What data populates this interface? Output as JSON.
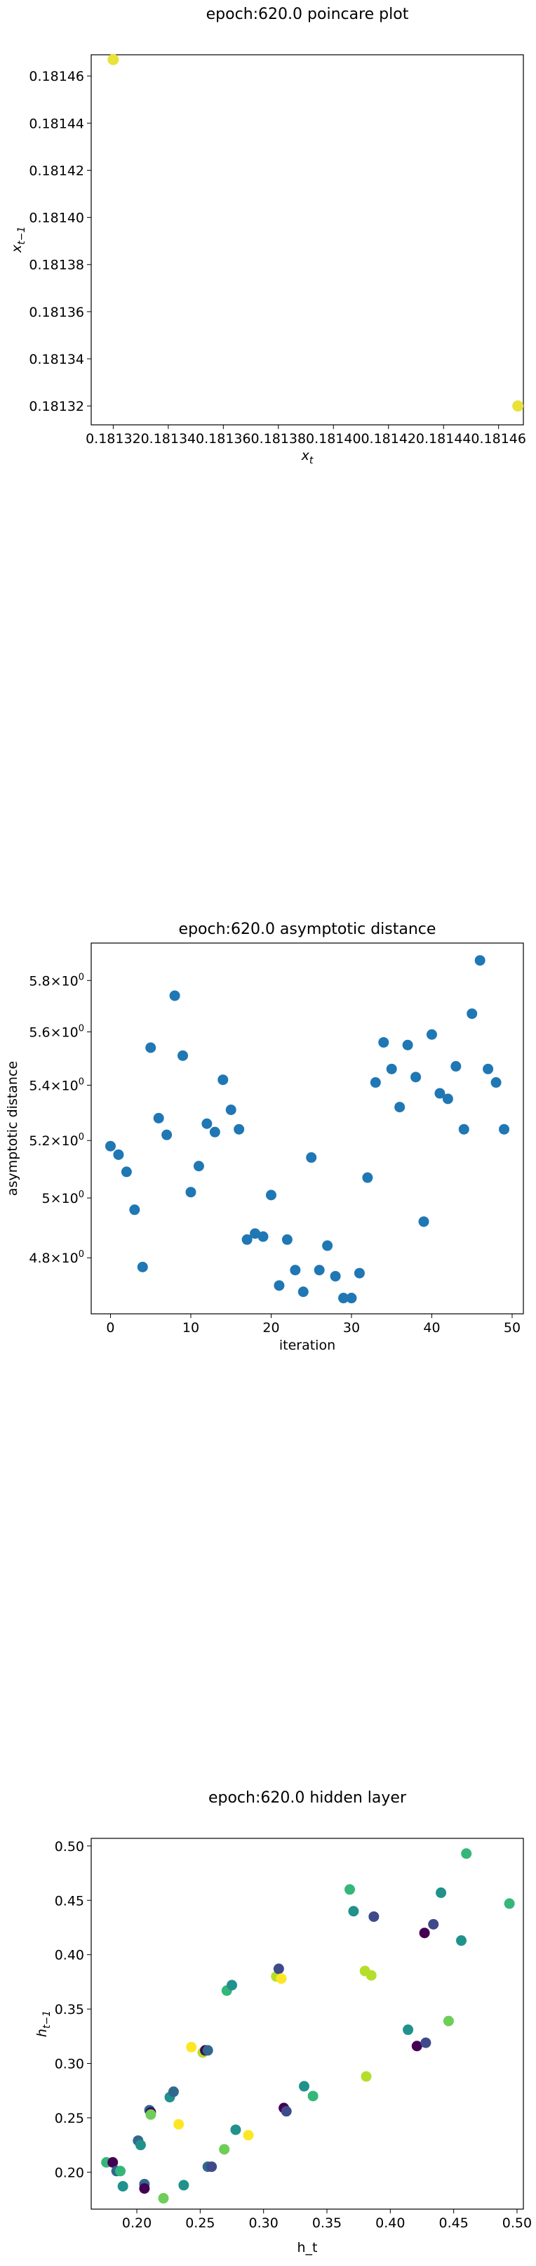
{
  "charts": {
    "poincare": {
      "title": "epoch:620.0 poincare plot",
      "xlabel": "x",
      "xlabel_sub": "t",
      "ylabel": "x",
      "ylabel_sub": "t−1",
      "x_ticks": [
        "0.18132",
        "0.18134",
        "0.18136",
        "0.18138",
        "0.18140",
        "0.18142",
        "0.18144",
        "0.18146"
      ],
      "y_ticks": [
        "0.18132",
        "0.18134",
        "0.18136",
        "0.18138",
        "0.18140",
        "0.18142",
        "0.18144",
        "0.18146"
      ]
    },
    "asymptotic": {
      "title": "epoch:620.0 asymptotic distance",
      "xlabel": "iteration",
      "ylabel": "asymptotic distance",
      "x_ticks": [
        "0",
        "10",
        "20",
        "30",
        "40",
        "50"
      ],
      "y_ticks": [
        "4.8",
        "5",
        "5.2",
        "5.4",
        "5.6",
        "5.8"
      ]
    },
    "hidden": {
      "title": "epoch:620.0 hidden layer",
      "xlabel": "h_t",
      "ylabel": "h",
      "ylabel_sub": "t−1",
      "x_ticks": [
        "0.20",
        "0.25",
        "0.30",
        "0.35",
        "0.40",
        "0.45",
        "0.50"
      ],
      "y_ticks": [
        "0.20",
        "0.25",
        "0.30",
        "0.35",
        "0.40",
        "0.45",
        "0.50"
      ]
    }
  },
  "chart_data": [
    {
      "type": "scatter",
      "title": "epoch:620.0 poincare plot",
      "xlabel": "x_t",
      "ylabel": "x_{t-1}",
      "xlim": [
        0.181312,
        0.181469
      ],
      "ylim": [
        0.181312,
        0.181469
      ],
      "grid": false,
      "marker_color": "#e8e23a",
      "points": [
        {
          "x": 0.18132,
          "y": 0.181467
        },
        {
          "x": 0.181467,
          "y": 0.18132
        }
      ]
    },
    {
      "type": "scatter",
      "title": "epoch:620.0 asymptotic distance",
      "xlabel": "iteration",
      "ylabel": "asymptotic distance",
      "y_scale": "log",
      "xlim": [
        -2.4,
        51.4
      ],
      "ylim": [
        4.62,
        5.95
      ],
      "grid": false,
      "marker_color": "#1f77b4",
      "x": [
        0,
        1,
        2,
        3,
        4,
        5,
        6,
        7,
        8,
        9,
        10,
        11,
        12,
        13,
        14,
        15,
        16,
        17,
        18,
        19,
        20,
        21,
        22,
        23,
        24,
        25,
        26,
        27,
        28,
        29,
        30,
        31,
        32,
        33,
        34,
        35,
        36,
        37,
        38,
        39,
        40,
        41,
        42,
        43,
        44,
        45,
        46,
        47,
        48,
        49
      ],
      "y": [
        5.18,
        5.15,
        5.09,
        4.96,
        4.77,
        5.54,
        5.28,
        5.22,
        5.74,
        5.51,
        5.02,
        5.11,
        5.26,
        5.23,
        5.42,
        5.31,
        5.24,
        4.86,
        4.88,
        4.87,
        5.01,
        4.71,
        4.86,
        4.76,
        4.69,
        5.14,
        4.76,
        4.84,
        4.74,
        4.67,
        4.67,
        4.75,
        5.07,
        5.41,
        5.56,
        5.46,
        5.32,
        5.55,
        5.43,
        4.92,
        5.59,
        5.37,
        5.35,
        5.47,
        5.24,
        5.67,
        5.88,
        5.46,
        5.41,
        5.24
      ]
    },
    {
      "type": "scatter",
      "title": "epoch:620.0 hidden layer",
      "xlabel": "h_t",
      "ylabel": "h_{t-1}",
      "xlim": [
        0.164,
        0.505
      ],
      "ylim": [
        0.166,
        0.507
      ],
      "grid": false,
      "colormap": "viridis",
      "points": [
        {
          "x": 0.176,
          "y": 0.209,
          "c": "#35b779"
        },
        {
          "x": 0.181,
          "y": 0.209,
          "c": "#440154"
        },
        {
          "x": 0.184,
          "y": 0.201,
          "c": "#31688e"
        },
        {
          "x": 0.187,
          "y": 0.201,
          "c": "#35b779"
        },
        {
          "x": 0.189,
          "y": 0.187,
          "c": "#21918c"
        },
        {
          "x": 0.201,
          "y": 0.229,
          "c": "#31688e"
        },
        {
          "x": 0.203,
          "y": 0.225,
          "c": "#21918c"
        },
        {
          "x": 0.206,
          "y": 0.189,
          "c": "#31688e"
        },
        {
          "x": 0.206,
          "y": 0.185,
          "c": "#440154"
        },
        {
          "x": 0.21,
          "y": 0.257,
          "c": "#31688e"
        },
        {
          "x": 0.211,
          "y": 0.255,
          "c": "#440154"
        },
        {
          "x": 0.211,
          "y": 0.253,
          "c": "#6ece58"
        },
        {
          "x": 0.221,
          "y": 0.176,
          "c": "#6ece58"
        },
        {
          "x": 0.226,
          "y": 0.269,
          "c": "#21918c"
        },
        {
          "x": 0.229,
          "y": 0.274,
          "c": "#31688e"
        },
        {
          "x": 0.233,
          "y": 0.244,
          "c": "#fde725"
        },
        {
          "x": 0.237,
          "y": 0.188,
          "c": "#21918c"
        },
        {
          "x": 0.243,
          "y": 0.315,
          "c": "#fde725"
        },
        {
          "x": 0.252,
          "y": 0.31,
          "c": "#b5de2b"
        },
        {
          "x": 0.254,
          "y": 0.312,
          "c": "#440154"
        },
        {
          "x": 0.256,
          "y": 0.205,
          "c": "#31688e"
        },
        {
          "x": 0.256,
          "y": 0.312,
          "c": "#31688e"
        },
        {
          "x": 0.259,
          "y": 0.205,
          "c": "#3e4a89"
        },
        {
          "x": 0.269,
          "y": 0.221,
          "c": "#6ece58"
        },
        {
          "x": 0.271,
          "y": 0.367,
          "c": "#35b779"
        },
        {
          "x": 0.275,
          "y": 0.372,
          "c": "#21918c"
        },
        {
          "x": 0.278,
          "y": 0.239,
          "c": "#21918c"
        },
        {
          "x": 0.288,
          "y": 0.234,
          "c": "#fde725"
        },
        {
          "x": 0.31,
          "y": 0.38,
          "c": "#b5de2b"
        },
        {
          "x": 0.312,
          "y": 0.387,
          "c": "#3e4a89"
        },
        {
          "x": 0.314,
          "y": 0.378,
          "c": "#fde725"
        },
        {
          "x": 0.316,
          "y": 0.259,
          "c": "#440154"
        },
        {
          "x": 0.318,
          "y": 0.256,
          "c": "#3e4a89"
        },
        {
          "x": 0.332,
          "y": 0.279,
          "c": "#21918c"
        },
        {
          "x": 0.339,
          "y": 0.27,
          "c": "#35b779"
        },
        {
          "x": 0.368,
          "y": 0.46,
          "c": "#35b779"
        },
        {
          "x": 0.371,
          "y": 0.44,
          "c": "#21918c"
        },
        {
          "x": 0.38,
          "y": 0.385,
          "c": "#b5de2b"
        },
        {
          "x": 0.381,
          "y": 0.288,
          "c": "#b5de2b"
        },
        {
          "x": 0.385,
          "y": 0.381,
          "c": "#b5de2b"
        },
        {
          "x": 0.387,
          "y": 0.435,
          "c": "#3e4a89"
        },
        {
          "x": 0.414,
          "y": 0.331,
          "c": "#21918c"
        },
        {
          "x": 0.421,
          "y": 0.316,
          "c": "#440154"
        },
        {
          "x": 0.427,
          "y": 0.42,
          "c": "#440154"
        },
        {
          "x": 0.428,
          "y": 0.319,
          "c": "#3e4a89"
        },
        {
          "x": 0.434,
          "y": 0.428,
          "c": "#3e4a89"
        },
        {
          "x": 0.44,
          "y": 0.457,
          "c": "#21918c"
        },
        {
          "x": 0.446,
          "y": 0.339,
          "c": "#6ece58"
        },
        {
          "x": 0.456,
          "y": 0.413,
          "c": "#21918c"
        },
        {
          "x": 0.46,
          "y": 0.493,
          "c": "#35b779"
        },
        {
          "x": 0.494,
          "y": 0.447,
          "c": "#35b779"
        }
      ]
    }
  ]
}
